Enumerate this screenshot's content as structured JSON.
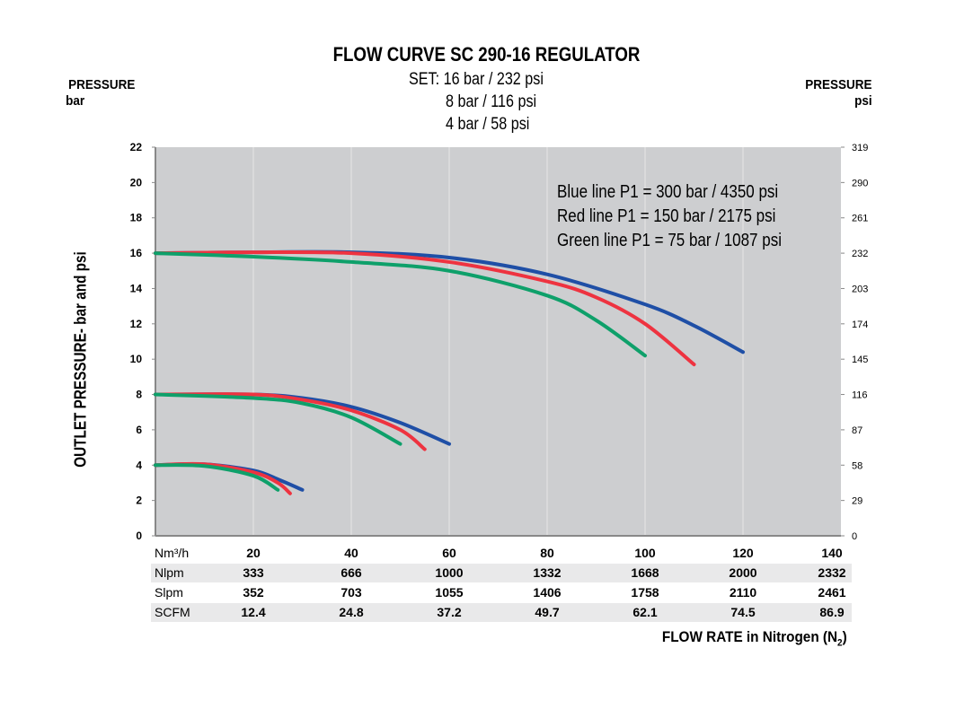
{
  "chart_data": {
    "type": "line",
    "title": "FLOW CURVE SC 290-16 REGULATOR",
    "subtitle": [
      "SET: 16 bar / 232 psi",
      "8 bar / 116 psi",
      "4 bar / 58 psi"
    ],
    "left_axis_header": [
      "PRESSURE",
      "bar"
    ],
    "right_axis_header": [
      "PRESSURE",
      "psi"
    ],
    "ylabel": "OUTLET PRESSURE- bar and psi",
    "xlabel": "FLOW RATE in Nitrogen (N",
    "xlabel_sub": "2",
    "xlabel_end": ")",
    "xlim": [
      0,
      140
    ],
    "ylim": [
      0,
      22
    ],
    "y_ticks": [
      0,
      2,
      4,
      6,
      8,
      10,
      12,
      14,
      16,
      18,
      20,
      22
    ],
    "y_ticks_psi": [
      "0",
      "29",
      "58",
      "87",
      "116",
      "145",
      "174",
      "203",
      "232",
      "261",
      "290",
      "319"
    ],
    "grid": true,
    "legend": [
      "Blue line P1 = 300 bar / 4350 psi",
      "Red line P1 = 150 bar / 2175 psi",
      "Green line P1 = 75 bar / 1087 psi"
    ],
    "colors": {
      "blue": "#1f4fa6",
      "red": "#ee3340",
      "green": "#0ea06a",
      "plot_bg": "#cdced0"
    },
    "table": [
      {
        "label": "Nm³/h",
        "values": [
          "20",
          "40",
          "60",
          "80",
          "100",
          "120",
          "140"
        ]
      },
      {
        "label": "Nlpm",
        "values": [
          "333",
          "666",
          "1000",
          "1332",
          "1668",
          "2000",
          "2332"
        ]
      },
      {
        "label": "Slpm",
        "values": [
          "352",
          "703",
          "1055",
          "1406",
          "1758",
          "2110",
          "2461"
        ]
      },
      {
        "label": "SCFM",
        "values": [
          "12.4",
          "24.8",
          "37.2",
          "49.7",
          "62.1",
          "74.5",
          "86.9"
        ]
      }
    ],
    "series": [
      {
        "color": "blue",
        "set": 16,
        "points": [
          [
            0,
            16
          ],
          [
            20,
            16.05
          ],
          [
            40,
            16.05
          ],
          [
            60,
            15.75
          ],
          [
            80,
            14.8
          ],
          [
            100,
            13.1
          ],
          [
            110,
            11.9
          ],
          [
            120,
            10.4
          ]
        ]
      },
      {
        "color": "red",
        "set": 16,
        "points": [
          [
            0,
            16
          ],
          [
            20,
            16.05
          ],
          [
            40,
            16.0
          ],
          [
            60,
            15.5
          ],
          [
            80,
            14.4
          ],
          [
            90,
            13.5
          ],
          [
            100,
            12.0
          ],
          [
            110,
            9.7
          ]
        ]
      },
      {
        "color": "green",
        "set": 16,
        "points": [
          [
            0,
            16
          ],
          [
            20,
            15.8
          ],
          [
            40,
            15.5
          ],
          [
            60,
            15.0
          ],
          [
            80,
            13.6
          ],
          [
            90,
            12.2
          ],
          [
            100,
            10.2
          ]
        ]
      },
      {
        "color": "blue",
        "set": 8,
        "points": [
          [
            0,
            8
          ],
          [
            20,
            8
          ],
          [
            30,
            7.8
          ],
          [
            40,
            7.3
          ],
          [
            50,
            6.4
          ],
          [
            60,
            5.2
          ]
        ]
      },
      {
        "color": "red",
        "set": 8,
        "points": [
          [
            0,
            8
          ],
          [
            20,
            8
          ],
          [
            30,
            7.7
          ],
          [
            40,
            7.1
          ],
          [
            50,
            6.0
          ],
          [
            55,
            4.9
          ]
        ]
      },
      {
        "color": "green",
        "set": 8,
        "points": [
          [
            0,
            8
          ],
          [
            20,
            7.8
          ],
          [
            30,
            7.5
          ],
          [
            40,
            6.7
          ],
          [
            50,
            5.2
          ]
        ]
      },
      {
        "color": "blue",
        "set": 4,
        "points": [
          [
            0,
            4
          ],
          [
            10,
            4.05
          ],
          [
            20,
            3.7
          ],
          [
            25,
            3.2
          ],
          [
            30,
            2.6
          ]
        ]
      },
      {
        "color": "red",
        "set": 4,
        "points": [
          [
            0,
            4
          ],
          [
            10,
            4.05
          ],
          [
            20,
            3.6
          ],
          [
            25,
            3.0
          ],
          [
            27.5,
            2.4
          ]
        ]
      },
      {
        "color": "green",
        "set": 4,
        "points": [
          [
            0,
            4
          ],
          [
            10,
            3.95
          ],
          [
            20,
            3.4
          ],
          [
            25,
            2.6
          ]
        ]
      }
    ]
  }
}
